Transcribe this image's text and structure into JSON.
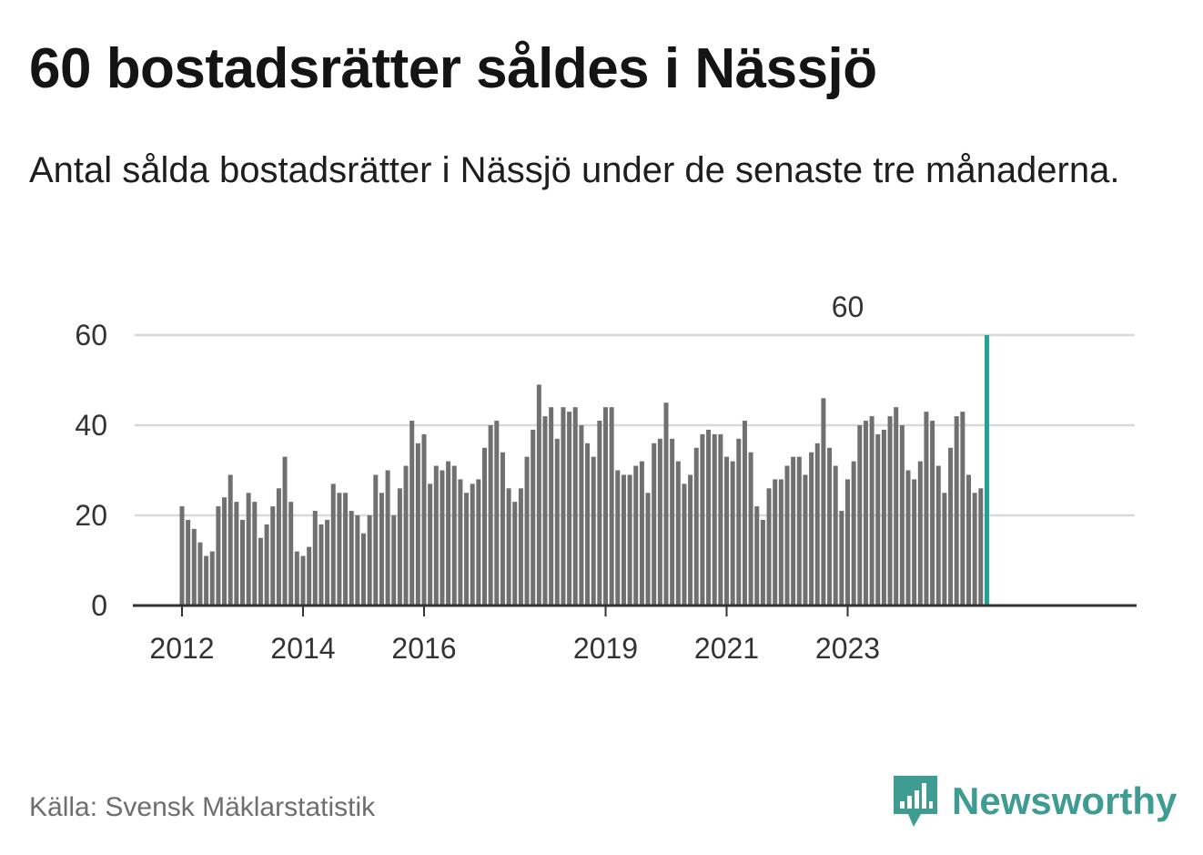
{
  "title": "60 bostadsrätter såldes i Nässjö",
  "subtitle": "Antal sålda bostadsrätter i Nässjö under de senaste tre månaderna.",
  "source": "Källa: Svensk Mäklarstatistik",
  "brand": {
    "name": "Newsworthy",
    "icon": "newsworthy-logo-icon"
  },
  "colors": {
    "bar": "#707070",
    "highlight": "#1ea396",
    "grid": "#d9d9d9",
    "axis": "#333333",
    "brand": "#3e9c93"
  },
  "chart_data": {
    "type": "bar",
    "title": "60 bostadsrätter såldes i Nässjö",
    "xlabel": "",
    "ylabel": "",
    "ylim": [
      0,
      60
    ],
    "yticks": [
      0,
      20,
      40,
      60
    ],
    "xtick_labels": [
      {
        "label": "2012",
        "index": 0
      },
      {
        "label": "2014",
        "index": 20
      },
      {
        "label": "2016",
        "index": 40
      },
      {
        "label": "2019",
        "index": 70
      },
      {
        "label": "2021",
        "index": 90
      },
      {
        "label": "2023",
        "index": 110
      }
    ],
    "annotation": {
      "label": "60",
      "index": 110
    },
    "values": [
      22,
      19,
      17,
      14,
      11,
      12,
      22,
      24,
      29,
      23,
      19,
      25,
      23,
      15,
      18,
      22,
      26,
      33,
      23,
      12,
      11,
      13,
      21,
      18,
      19,
      27,
      25,
      25,
      21,
      20,
      16,
      20,
      29,
      25,
      30,
      20,
      26,
      31,
      41,
      36,
      38,
      27,
      31,
      30,
      32,
      31,
      28,
      25,
      27,
      28,
      35,
      40,
      41,
      34,
      26,
      23,
      26,
      33,
      39,
      49,
      42,
      44,
      37,
      44,
      43,
      44,
      40,
      36,
      33,
      41,
      44,
      44,
      30,
      29,
      29,
      31,
      32,
      25,
      36,
      37,
      45,
      37,
      32,
      27,
      29,
      35,
      38,
      39,
      38,
      38,
      33,
      32,
      37,
      41,
      34,
      22,
      19,
      26,
      28,
      28,
      31,
      33,
      33,
      29,
      34,
      36,
      46,
      35,
      31,
      21,
      28,
      32,
      40,
      41,
      42,
      38,
      39,
      42,
      44,
      40,
      30,
      28,
      32,
      43,
      41,
      31,
      25,
      35,
      42,
      43,
      29,
      25,
      26,
      60
    ]
  }
}
